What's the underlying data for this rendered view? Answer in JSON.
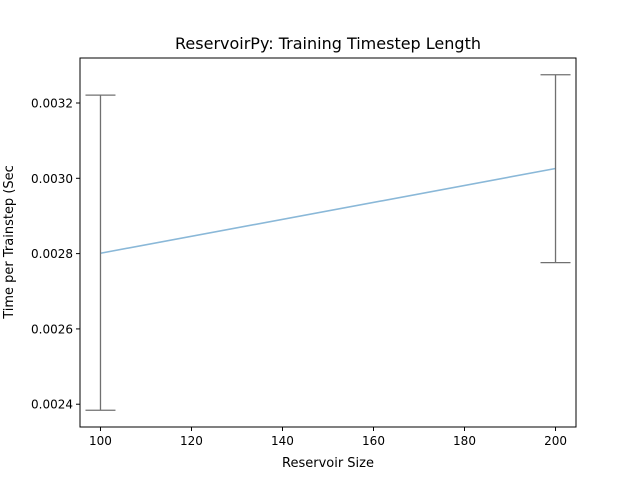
{
  "chart_data": {
    "type": "line",
    "title": "ReservoirPy: Training Timestep Length",
    "xlabel": "Reservoir Size",
    "ylabel": "Time per Trainstep (Sec",
    "x": [
      100,
      200
    ],
    "series": [
      {
        "values": [
          0.002801,
          0.003026
        ],
        "error_lower": [
          0.002384,
          0.002776
        ],
        "error_upper": [
          0.003221,
          0.003275
        ],
        "color": "#8ab8d8"
      }
    ],
    "error_bar_color": "#707070",
    "xlim": [
      95.5,
      204.5
    ],
    "ylim": [
      0.0023395,
      0.0033195
    ],
    "xticks": [
      100,
      120,
      140,
      160,
      180,
      200
    ],
    "xtick_labels": [
      "100",
      "120",
      "140",
      "160",
      "180",
      "200"
    ],
    "yticks": [
      0.0024,
      0.0026,
      0.0028,
      0.003,
      0.0032
    ],
    "ytick_labels": [
      "0.0024",
      "0.0026",
      "0.0028",
      "0.0030",
      "0.0032"
    ],
    "grid": false,
    "legend": "none"
  }
}
